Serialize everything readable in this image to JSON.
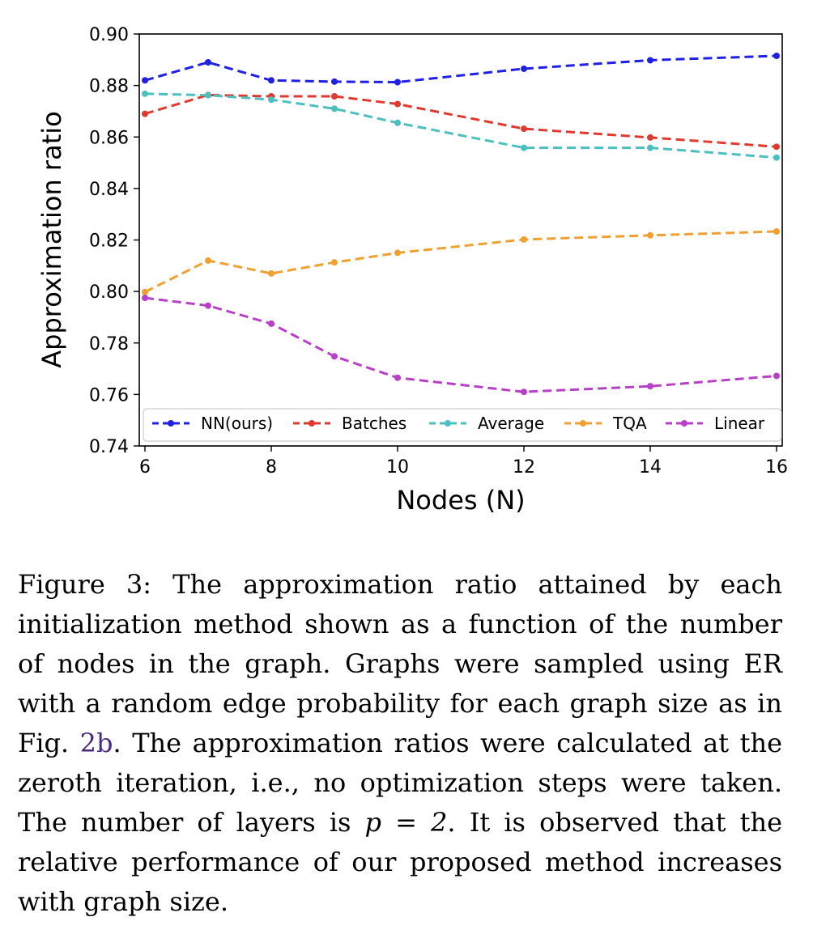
{
  "chart_data": {
    "type": "line",
    "xlabel": "Nodes (N)",
    "ylabel": "Approximation ratio",
    "xlim": [
      6,
      16
    ],
    "ylim": [
      0.74,
      0.9
    ],
    "xticks": [
      6,
      8,
      10,
      12,
      14,
      16
    ],
    "yticks": [
      0.74,
      0.76,
      0.78,
      0.8,
      0.82,
      0.84,
      0.86,
      0.88,
      0.9
    ],
    "xtick_labels": [
      "6",
      "8",
      "10",
      "12",
      "14",
      "16"
    ],
    "ytick_labels": [
      "0.74",
      "0.76",
      "0.78",
      "0.80",
      "0.82",
      "0.84",
      "0.86",
      "0.88",
      "0.90"
    ],
    "grid": false,
    "legend_position": "bottom",
    "line_style": "dashed",
    "x": [
      6,
      7,
      8,
      9,
      10,
      12,
      14,
      16
    ],
    "series": [
      {
        "name": "NN(ours)",
        "color": "#1f1fe6",
        "values": [
          0.882,
          0.889,
          0.882,
          0.8815,
          0.8813,
          0.8865,
          0.8898,
          0.8915
        ]
      },
      {
        "name": "Batches",
        "color": "#e03a30",
        "values": [
          0.869,
          0.8763,
          0.8758,
          0.8758,
          0.8728,
          0.8632,
          0.8598,
          0.8562
        ]
      },
      {
        "name": "Average",
        "color": "#4cbfbf",
        "values": [
          0.8768,
          0.8762,
          0.8745,
          0.871,
          0.8655,
          0.8558,
          0.8558,
          0.852
        ]
      },
      {
        "name": "TQA",
        "color": "#f0a030",
        "values": [
          0.7998,
          0.812,
          0.807,
          0.8113,
          0.815,
          0.8202,
          0.8218,
          0.8233
        ]
      },
      {
        "name": "Linear",
        "color": "#b83fc8",
        "values": [
          0.7975,
          0.7945,
          0.7875,
          0.7748,
          0.7665,
          0.761,
          0.7632,
          0.7672
        ]
      }
    ]
  },
  "caption": {
    "p1": "Figure 3: The approximation ratio attained by each initialization method shown as a function of the number of nodes in the graph. Graphs were sampled using ER with a random edge probability for each graph size as in Fig. ",
    "ref": "2b",
    "p2": ". The approximation ratios were calculated at the zeroth iteration, i.e., no optimization steps were taken. The number of layers is ",
    "math": "p = 2",
    "p3": ". It is observed that the relative performance of our proposed method increases with graph size."
  }
}
